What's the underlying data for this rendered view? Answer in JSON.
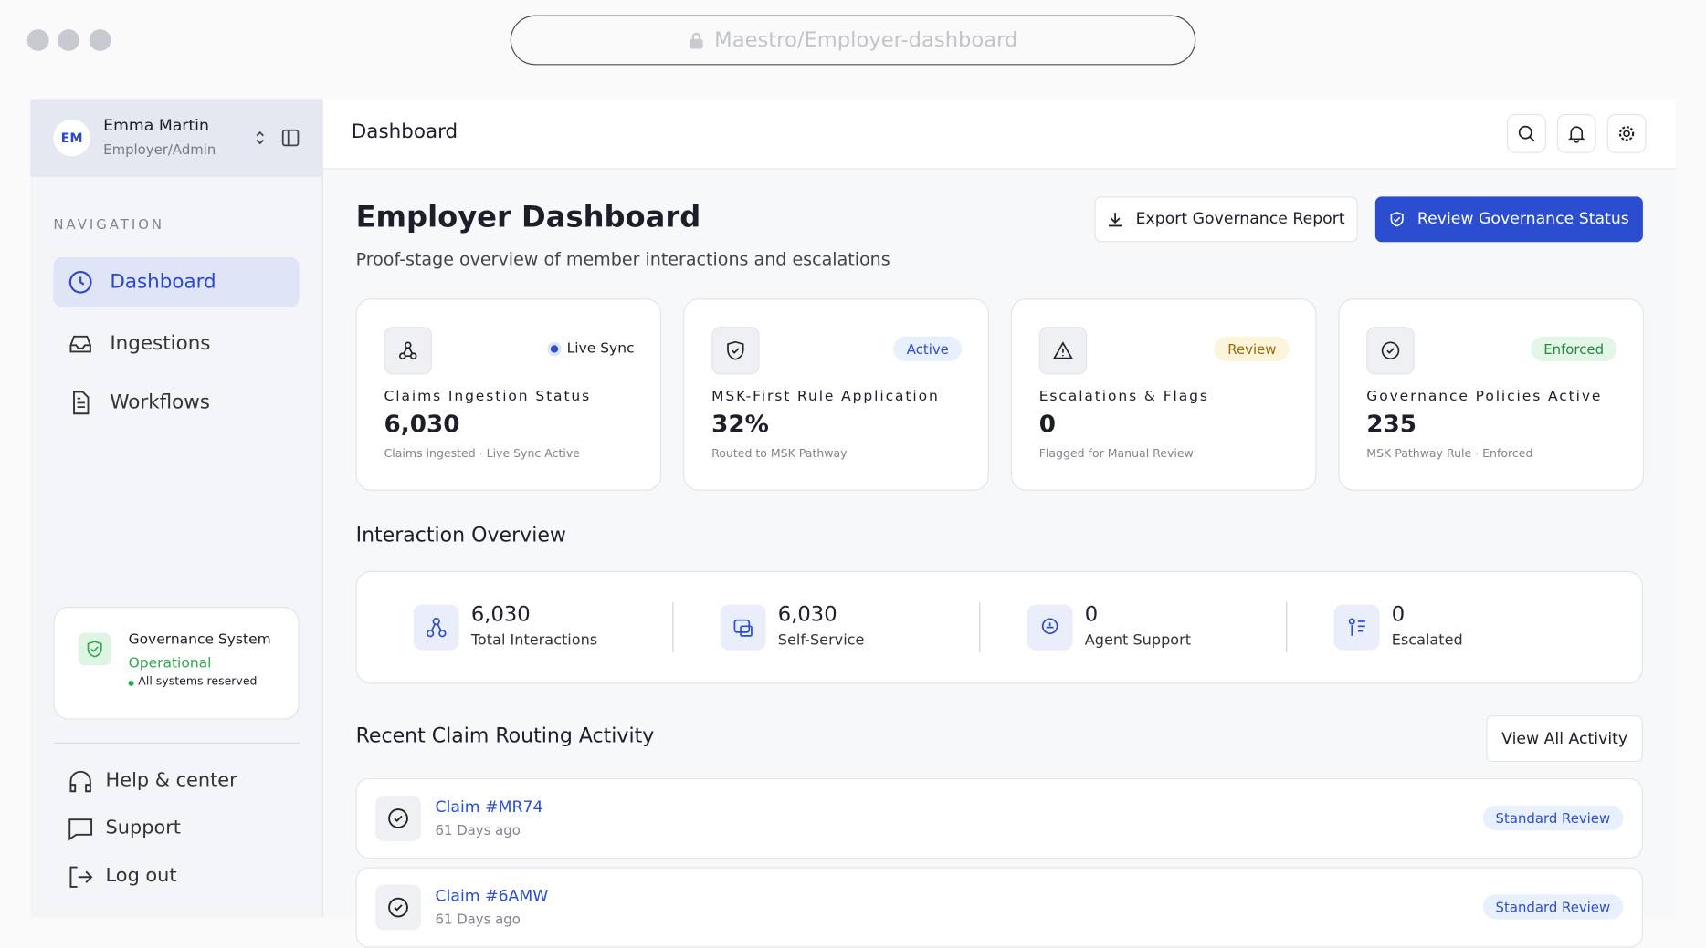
{
  "browser": {
    "url": "Maestro/Employer-dashboard"
  },
  "user": {
    "initials": "EM",
    "name": "Emma Martin",
    "role": "Employer/Admin"
  },
  "navigation": {
    "title": "NAVIGATION",
    "items": [
      "Dashboard",
      "Ingestions",
      "Workflows"
    ]
  },
  "governance_card": {
    "title": "Governance System",
    "status": "Operational",
    "note": "All systems reserved"
  },
  "footer_links": [
    "Help & center",
    "Support",
    "Log out"
  ],
  "header": {
    "title": "Dashboard"
  },
  "page": {
    "title": "Employer Dashboard",
    "subtitle": "Proof-stage overview of member interactions and escalations"
  },
  "buttons": {
    "export": "Export Governance Report",
    "review": "Review Governance Status"
  },
  "stat_cards": [
    {
      "badge": "Live Sync",
      "title": "Claims Ingestion Status",
      "value": "6,030",
      "sub": "Claims ingested · Live Sync Active"
    },
    {
      "badge": "Active",
      "title": "MSK-First Rule Application",
      "value": "32%",
      "sub": "Routed to MSK Pathway"
    },
    {
      "badge": "Review",
      "title": "Escalations & Flags",
      "value": "0",
      "sub": "Flagged for Manual Review"
    },
    {
      "badge": "Enforced",
      "title": "Governance Policies Active",
      "value": "235",
      "sub": "MSK Pathway Rule · Enforced"
    }
  ],
  "interaction_overview": {
    "title": "Interaction Overview",
    "items": [
      {
        "value": "6,030",
        "label": "Total Interactions"
      },
      {
        "value": "6,030",
        "label": "Self-Service"
      },
      {
        "value": "0",
        "label": "Agent Support"
      },
      {
        "value": "0",
        "label": "Escalated"
      }
    ]
  },
  "recent_activity": {
    "title": "Recent Claim Routing Activity",
    "button": "View All Activity",
    "claims": [
      {
        "id": "Claim #MR74",
        "time": "61 Days ago",
        "badge": "Standard Review"
      },
      {
        "id": "Claim #6AMW",
        "time": "61 Days ago",
        "badge": "Standard Review"
      }
    ]
  }
}
